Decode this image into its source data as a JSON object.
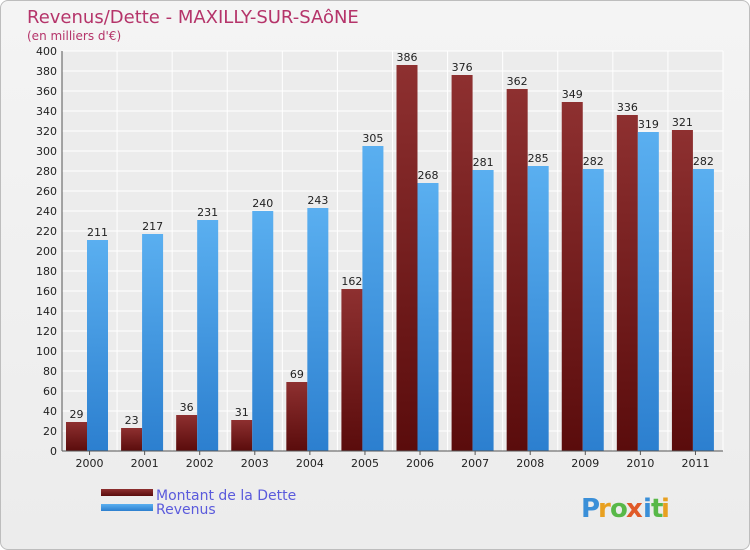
{
  "chart_data": {
    "type": "bar",
    "title": "Revenus/Dette - MAXILLY-SUR-SAôNE",
    "subtitle": "(en milliers d'€)",
    "categories": [
      "2000",
      "2001",
      "2002",
      "2003",
      "2004",
      "2005",
      "2006",
      "2007",
      "2008",
      "2009",
      "2010",
      "2011"
    ],
    "series": [
      {
        "name": "Montant de la Dette",
        "color": "#7a1f1f",
        "values": [
          29,
          23,
          36,
          31,
          69,
          162,
          386,
          376,
          362,
          349,
          336,
          321
        ]
      },
      {
        "name": "Revenus",
        "color": "#3f9be3",
        "values": [
          211,
          217,
          231,
          240,
          243,
          305,
          268,
          281,
          285,
          282,
          319,
          282
        ]
      }
    ],
    "ylim": [
      0,
      400
    ],
    "ytick_step": 20,
    "grid": true,
    "legend_position": "bottom-left"
  },
  "logo": {
    "text": "Proxiti"
  }
}
